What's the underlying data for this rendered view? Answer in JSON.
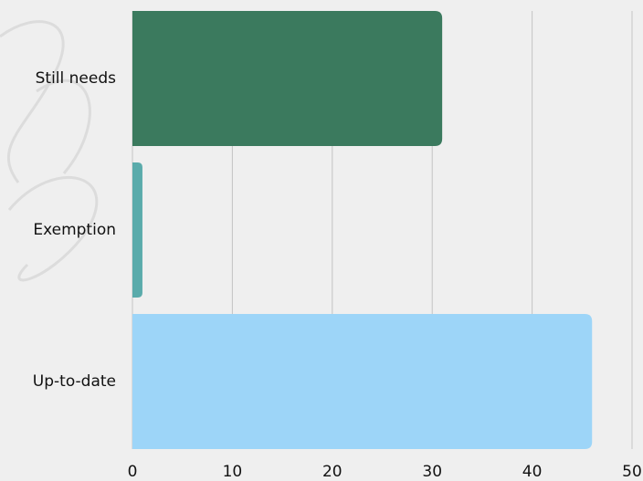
{
  "chart_data": {
    "type": "hbar",
    "categories": [
      "Still needs",
      "Exemption",
      "Up-to-date"
    ],
    "values": [
      31,
      1,
      46
    ],
    "colors": [
      "#3b7a5e",
      "#5aabab",
      "#9dd5f8"
    ],
    "xlim": [
      0,
      50
    ],
    "xticks": [
      0,
      10,
      20,
      30,
      40,
      50
    ],
    "grid": true
  }
}
